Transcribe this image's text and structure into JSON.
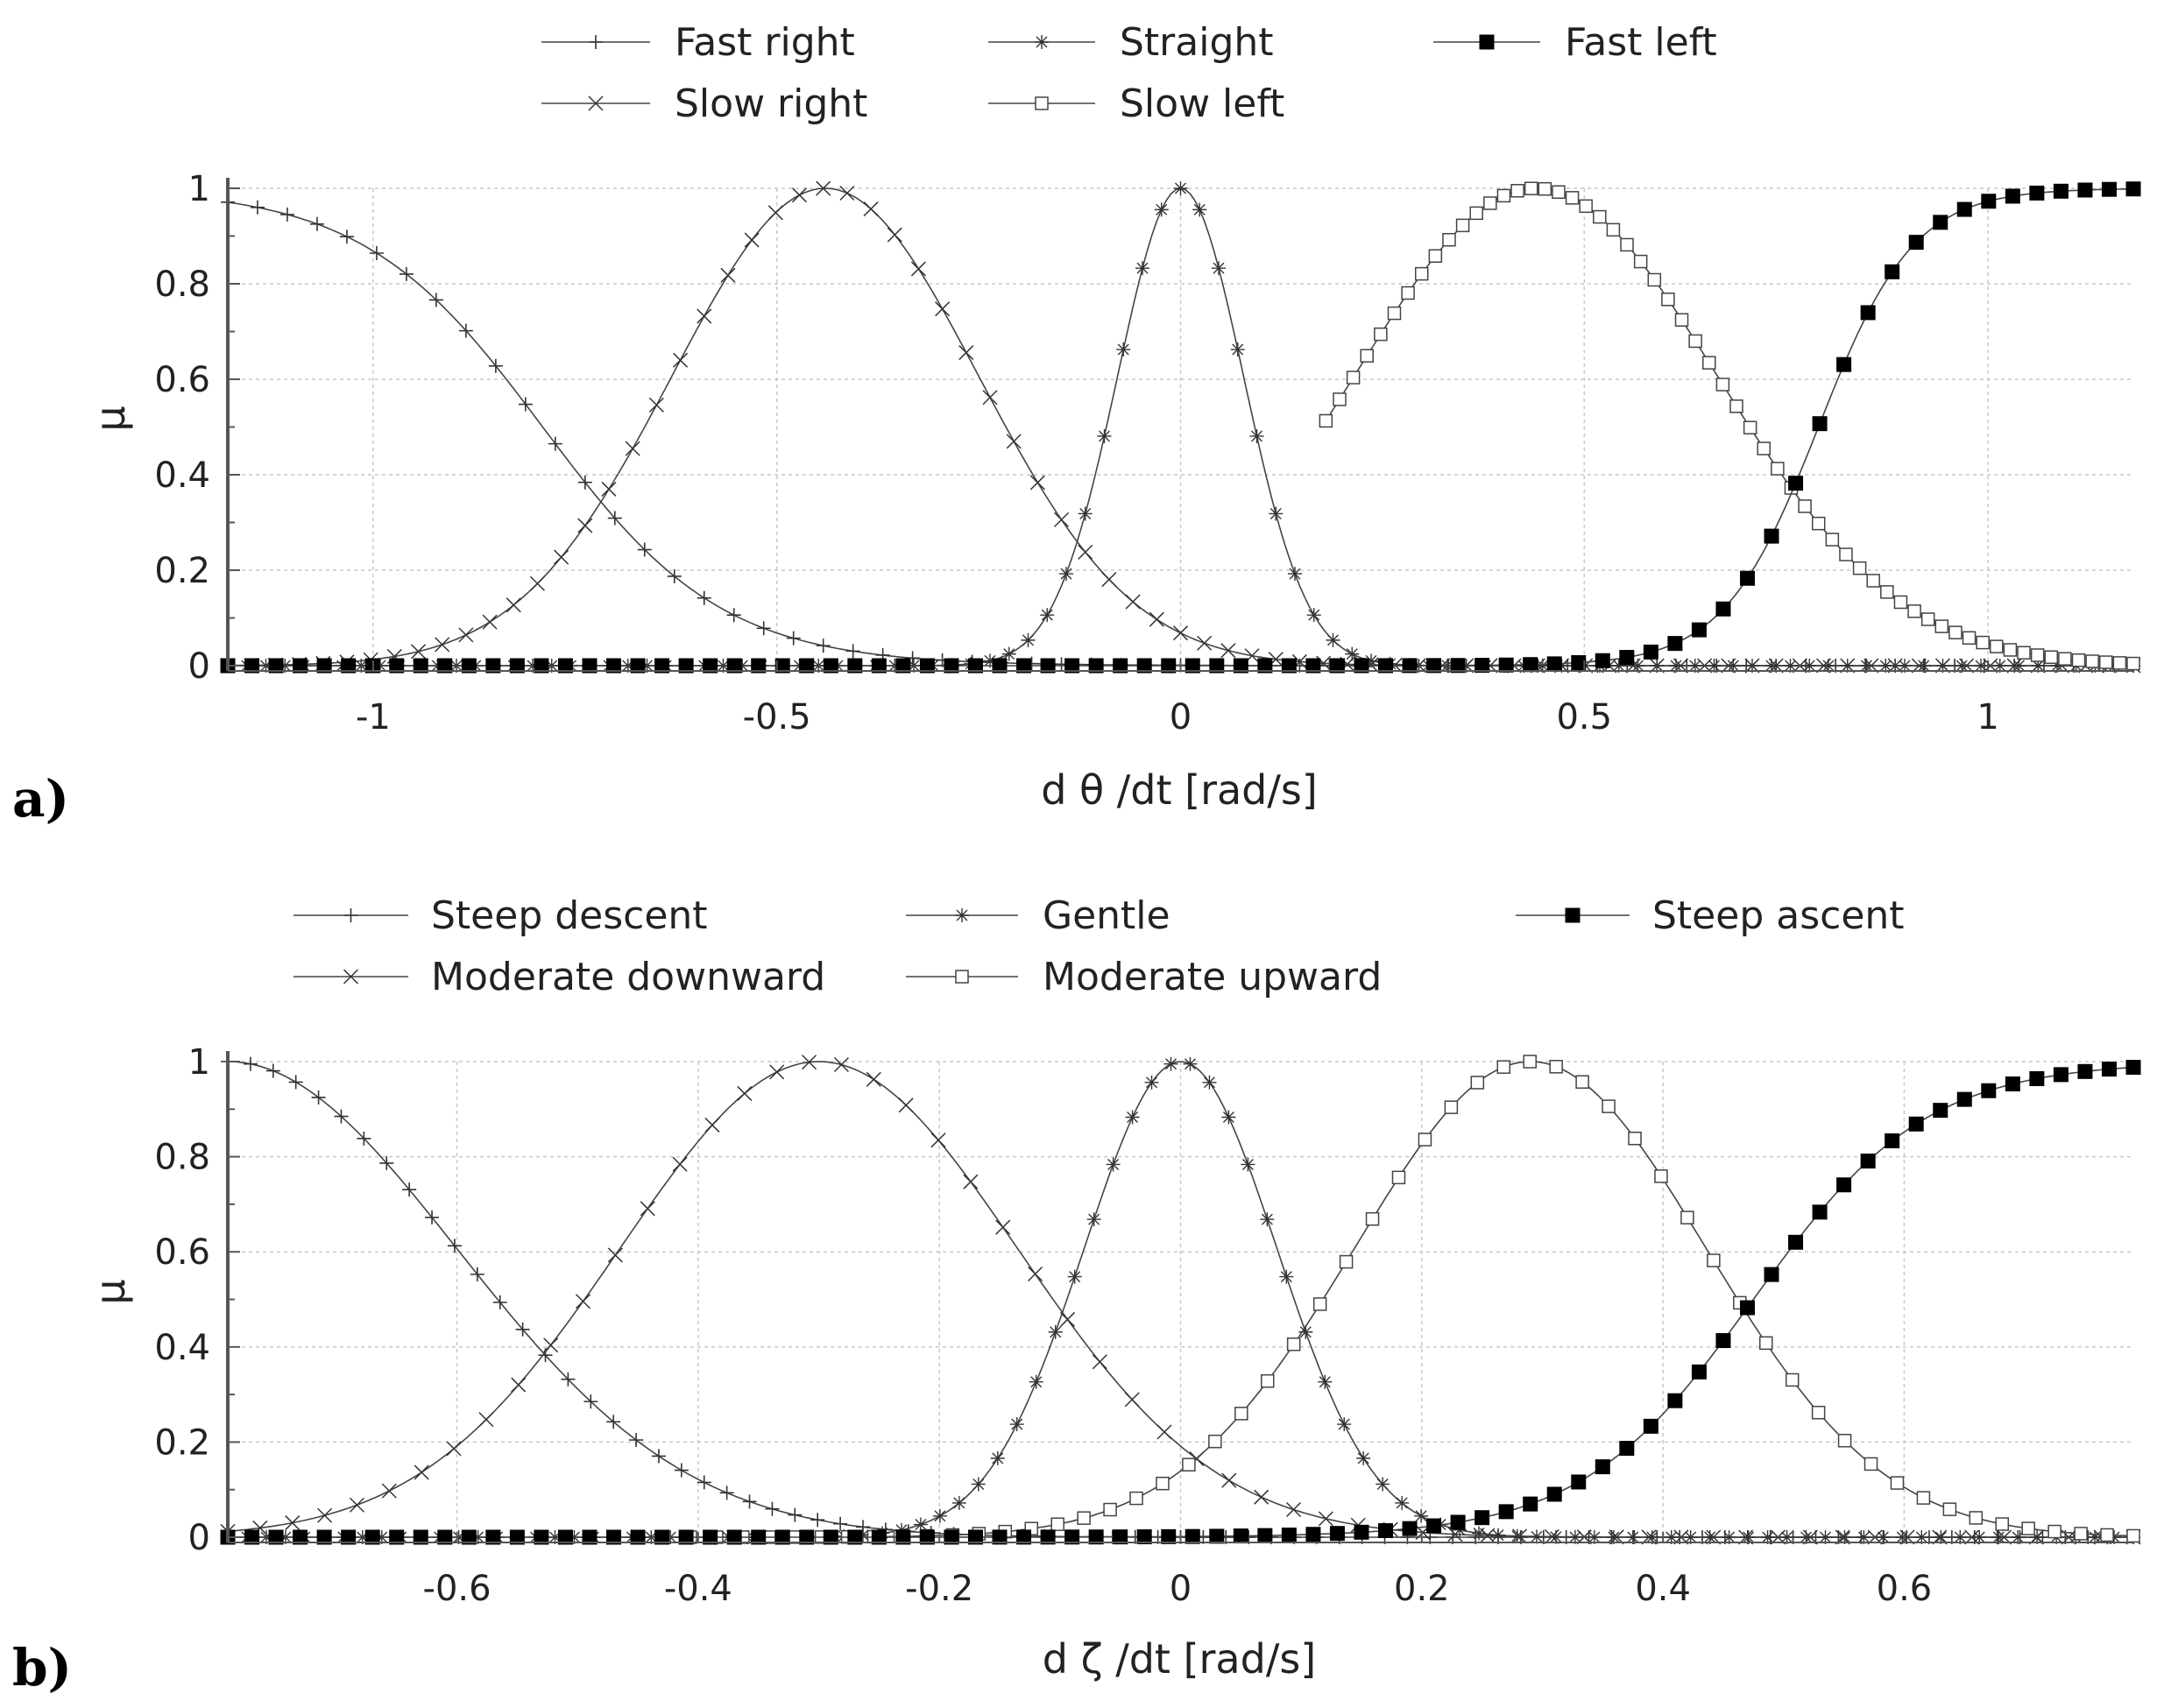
{
  "chart_data": [
    {
      "type": "line",
      "panel_label": "a)",
      "xlabel": "d θ /dt [rad/s]",
      "ylabel": "μ",
      "xlim": [
        -1.18,
        1.18
      ],
      "ylim": [
        0,
        1
      ],
      "grid": true,
      "legend": "top",
      "xticks": [
        -1,
        -0.5,
        0,
        0.5,
        1
      ],
      "xtick_labels": [
        "-1",
        "-0.5",
        "0",
        "0.5",
        "1"
      ],
      "yticks": [
        0,
        0.2,
        0.4,
        0.6,
        0.8,
        1
      ],
      "ytick_labels": [
        "0",
        "0.2",
        "0.4",
        "0.6",
        "0.8",
        "1"
      ],
      "series": [
        {
          "name": "Fast right",
          "marker": "plus",
          "shape": "zshape",
          "a": -0.79,
          "b": 9.0,
          "x_start": -1.18,
          "x_end": 1.18,
          "n_markers": 65
        },
        {
          "name": "Slow right",
          "marker": "cross",
          "shape": "gauss",
          "center": -0.44,
          "sigma": 0.19,
          "x_start": -1.18,
          "x_end": 1.18,
          "n_markers": 81
        },
        {
          "name": "Straight",
          "marker": "star",
          "shape": "gauss",
          "center": 0.0,
          "sigma": 0.078,
          "x_start": -1.18,
          "x_end": 1.18,
          "n_markers": 101
        },
        {
          "name": "Slow left",
          "marker": "square-open",
          "shape": "gauss",
          "center": 0.44,
          "sigma": 0.225,
          "x_start": 0.18,
          "x_end": 1.18,
          "n_markers": 60
        },
        {
          "name": "Fast left",
          "marker": "square-filled",
          "shape": "sshape",
          "a": 0.79,
          "b": 17.0,
          "x_start": -1.18,
          "x_end": 1.18,
          "n_markers": 80
        }
      ]
    },
    {
      "type": "line",
      "panel_label": "b)",
      "xlabel": "d ζ /dt [rad/s]",
      "ylabel": "μ",
      "xlim": [
        -0.79,
        0.79
      ],
      "ylim": [
        0,
        1
      ],
      "grid": true,
      "legend": "top",
      "xticks": [
        -0.6,
        -0.4,
        -0.2,
        0,
        0.2,
        0.4,
        0.6
      ],
      "xtick_labels": [
        "-0.6",
        "-0.4",
        "-0.2",
        "0",
        "0.2",
        "0.4",
        "0.6"
      ],
      "yticks": [
        0,
        0.2,
        0.4,
        0.6,
        0.8,
        1
      ],
      "ytick_labels": [
        "0",
        "0.2",
        "0.4",
        "0.6",
        "0.8",
        "1"
      ],
      "series": [
        {
          "name": "Steep descent",
          "marker": "plus",
          "shape": "gauss",
          "center": -0.79,
          "sigma": 0.19,
          "x_start": -0.79,
          "x_end": 0.79,
          "n_markers": 85
        },
        {
          "name": "Moderate downward",
          "marker": "cross",
          "shape": "gauss",
          "center": -0.3,
          "sigma": 0.165,
          "x_start": -0.79,
          "x_end": 0.79,
          "n_markers": 60
        },
        {
          "name": "Gentle",
          "marker": "star",
          "shape": "gauss",
          "center": 0.0,
          "sigma": 0.08,
          "x_start": -0.79,
          "x_end": 0.79,
          "n_markers": 100
        },
        {
          "name": "Moderate upward",
          "marker": "square-open",
          "shape": "gauss",
          "center": 0.29,
          "sigma": 0.146,
          "x_start": -0.45,
          "x_end": 0.79,
          "n_markers": 58
        },
        {
          "name": "Steep ascent",
          "marker": "square-filled",
          "shape": "sshape",
          "a": 0.475,
          "b": 14.0,
          "x_start": -0.79,
          "x_end": 0.79,
          "n_markers": 80
        }
      ]
    }
  ]
}
